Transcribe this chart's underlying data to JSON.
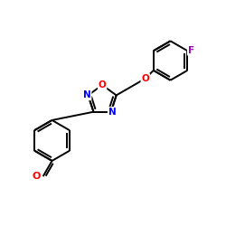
{
  "background_color": "#ffffff",
  "bond_color": "#000000",
  "atom_colors": {
    "O": "#ff0000",
    "N": "#0000ff",
    "F": "#9900aa",
    "C": "#000000"
  },
  "figsize": [
    2.5,
    2.5
  ],
  "dpi": 100,
  "bond_lw": 1.4
}
